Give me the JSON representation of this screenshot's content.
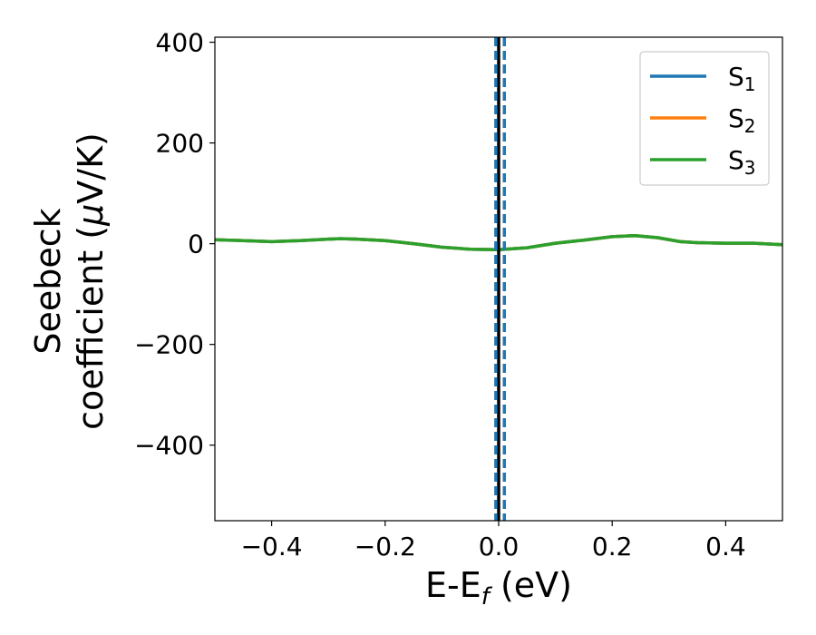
{
  "chart_data": {
    "type": "line",
    "xlabel": {
      "main": "E-E",
      "sub": "f",
      "unit": " (eV)"
    },
    "ylabel": {
      "line1": "Seebeck",
      "line2_prefix": "coefficient  (",
      "mu": "μ",
      "line2_suffix": "V/K)"
    },
    "xlim": [
      -0.5,
      0.5
    ],
    "ylim": [
      -550,
      410
    ],
    "xticks": [
      -0.4,
      -0.2,
      0.0,
      0.2,
      0.4
    ],
    "xtick_labels": [
      "−0.4",
      "−0.2",
      "0.0",
      "0.2",
      "0.4"
    ],
    "yticks": [
      400,
      200,
      0,
      -200,
      -400
    ],
    "ytick_labels": [
      "400",
      "200",
      "0",
      "−200",
      "−400"
    ],
    "legend_position": "upper right",
    "x": [
      -0.5,
      -0.45,
      -0.4,
      -0.35,
      -0.3,
      -0.28,
      -0.25,
      -0.2,
      -0.15,
      -0.1,
      -0.05,
      0.0,
      0.05,
      0.1,
      0.15,
      0.2,
      0.24,
      0.28,
      0.32,
      0.35,
      0.4,
      0.45,
      0.5
    ],
    "series": [
      {
        "name_main": "S",
        "name_sub": "1",
        "color": "#1f77b4",
        "values": [
          8,
          6,
          4,
          6,
          9,
          10,
          9,
          6,
          0,
          -7,
          -11,
          -12,
          -8,
          1,
          7,
          14,
          16,
          12,
          4,
          2,
          1,
          1,
          -2
        ]
      },
      {
        "name_main": "S",
        "name_sub": "2",
        "color": "#ff7f0e",
        "values": [
          8,
          6,
          4,
          6,
          9,
          10,
          9,
          6,
          0,
          -7,
          -11,
          -12,
          -8,
          1,
          7,
          14,
          16,
          12,
          4,
          2,
          1,
          1,
          -2
        ]
      },
      {
        "name_main": "S",
        "name_sub": "3",
        "color": "#2ca02c",
        "values": [
          8,
          6,
          4,
          6,
          9,
          10,
          9,
          6,
          0,
          -7,
          -11,
          -12,
          -8,
          1,
          7,
          14,
          16,
          12,
          4,
          2,
          1,
          1,
          -2
        ]
      }
    ],
    "vlines": [
      {
        "x": 0.0,
        "color": "#000000",
        "style": "solid"
      },
      {
        "x": -0.005,
        "color": "#1f77b4",
        "style": "dashed"
      },
      {
        "x": 0.01,
        "color": "#1f77b4",
        "style": "dashed"
      }
    ]
  }
}
